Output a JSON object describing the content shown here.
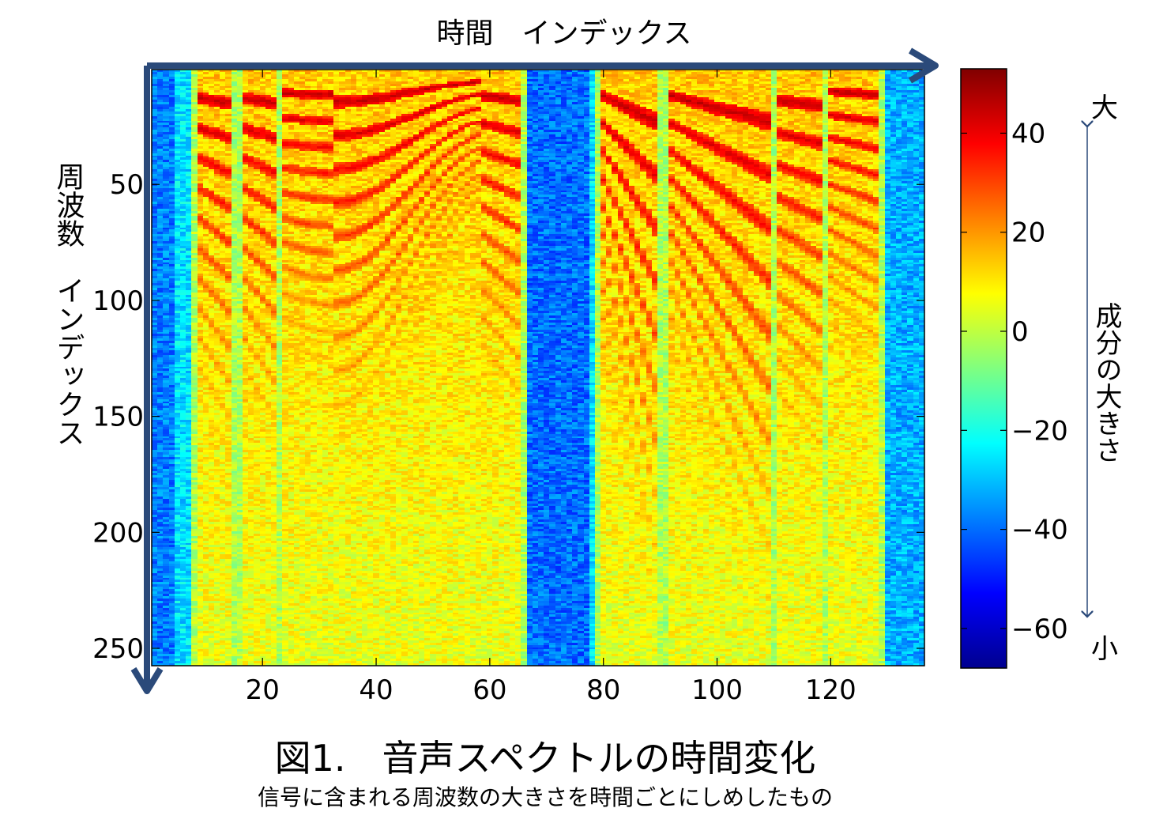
{
  "chart_data": {
    "type": "heatmap",
    "title": "",
    "xlabel": "時間　インデックス",
    "ylabel": "周波数　インデックス",
    "xlim": [
      1,
      136
    ],
    "ylim": [
      1,
      257
    ],
    "y_reversed": true,
    "x_ticks": [
      20,
      40,
      60,
      80,
      100,
      120
    ],
    "y_ticks": [
      50,
      100,
      150,
      200,
      250
    ],
    "colormap": "jet",
    "color_range": [
      -68,
      53
    ],
    "colorbar_ticks": [
      40,
      20,
      0,
      -20,
      -40,
      -60
    ],
    "colorbar_label": "成分の大きさ",
    "colorbar_high_label": "大",
    "colorbar_low_label": "小",
    "segments": [
      {
        "x_start": 9,
        "x_end": 14,
        "f0": 13,
        "contour": "flat"
      },
      {
        "x_start": 17,
        "x_end": 22,
        "f0": 13,
        "contour": "flat"
      },
      {
        "x_start": 24,
        "x_end": 58,
        "f0": 10,
        "contour": "wave"
      },
      {
        "x_start": 59,
        "x_end": 65,
        "f0": 12,
        "contour": "flat"
      },
      {
        "x_start": 80,
        "x_end": 89,
        "f0": 12,
        "contour": "falling"
      },
      {
        "x_start": 92,
        "x_end": 109,
        "f0": 12,
        "contour": "falling"
      },
      {
        "x_start": 111,
        "x_end": 118,
        "f0": 14,
        "contour": "flat"
      },
      {
        "x_start": 120,
        "x_end": 128,
        "f0": 10,
        "contour": "flat"
      }
    ]
  },
  "caption": {
    "main": "図1.　音声スペクトルの時間変化",
    "sub": "信号に含まれる周波数の大きさを時間ごとにしめしたもの"
  },
  "colors": {
    "arrow": "#2b4a7a",
    "frame": "#000000"
  }
}
